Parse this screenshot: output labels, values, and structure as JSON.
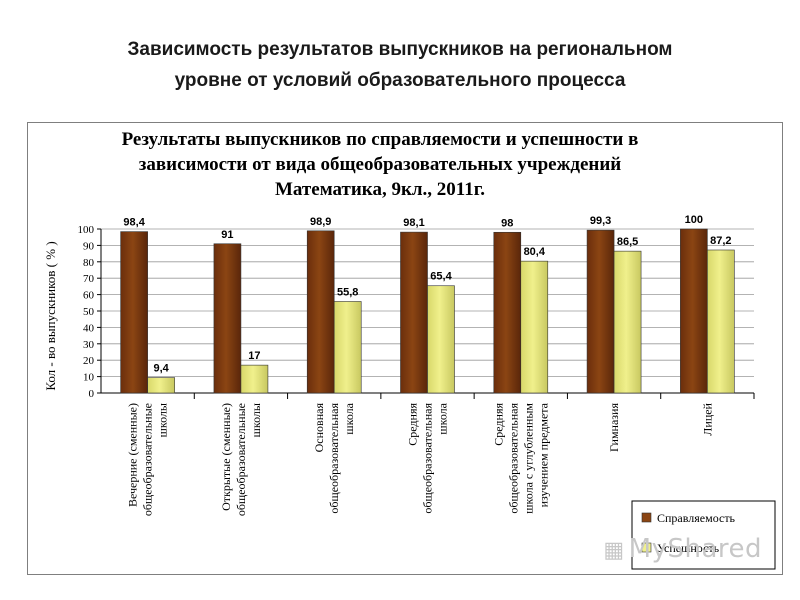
{
  "slide": {
    "title_line1": "Зависимость результатов выпускников на региональном",
    "title_line2": "уровне от условий образовательного процесса"
  },
  "watermark": {
    "text": "MyShared"
  },
  "chart_data": {
    "type": "bar",
    "title_lines": [
      "Результаты выпускников по справляемости и успешности в",
      "зависимости от  вида общеобразовательных учреждений",
      "Математика, 9кл., 2011г."
    ],
    "ylabel": "Кол - во выпускников ( % )",
    "xlabel": "",
    "ylim": [
      0,
      100
    ],
    "yticks": [
      0,
      10,
      20,
      30,
      40,
      50,
      60,
      70,
      80,
      90,
      100
    ],
    "grid": true,
    "legend_position": "bottom-right",
    "categories": [
      [
        "Вечерние (сменные)",
        "общеобразовательные",
        "школы"
      ],
      [
        "Открытые (сменные)",
        "общеобразовательные",
        "школы"
      ],
      [
        "Основная",
        "общеобразовательная",
        "школа"
      ],
      [
        "Средняя",
        "общеобразовательная",
        "школа"
      ],
      [
        "Средняя",
        "общеобразовательная",
        "школа с углубленным",
        "изучением предмета"
      ],
      [
        "Гимназия"
      ],
      [
        "Лицей"
      ]
    ],
    "series": [
      {
        "name": "Справляемость",
        "color": "#8b4513",
        "values": [
          98.4,
          91,
          98.9,
          98.1,
          98,
          99.3,
          100
        ],
        "labels": [
          "98,4",
          "91",
          "98,9",
          "98,1",
          "98",
          "99,3",
          "100"
        ]
      },
      {
        "name": "Успешность",
        "color": "#f0f08c",
        "values": [
          9.4,
          17,
          55.8,
          65.4,
          80.4,
          86.5,
          87.2
        ],
        "labels": [
          "9,4",
          "17",
          "55,8",
          "65,4",
          "80,4",
          "86,5",
          "87,2"
        ]
      }
    ]
  }
}
